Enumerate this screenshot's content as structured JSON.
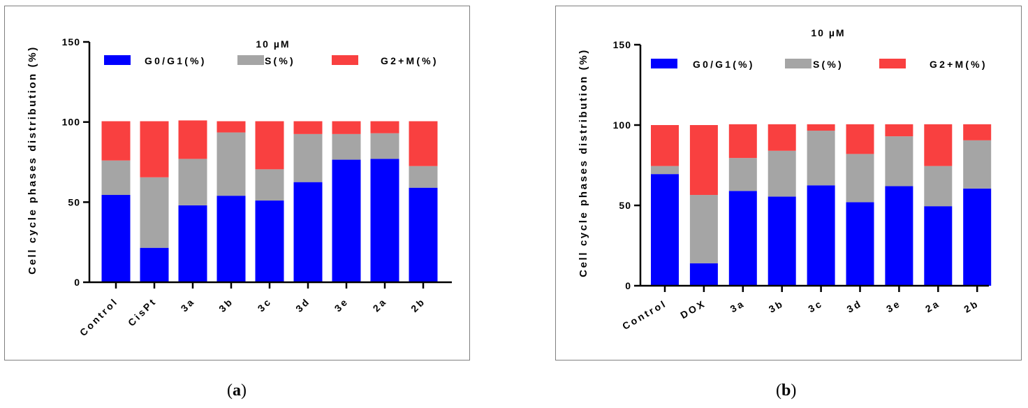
{
  "chart_data": [
    {
      "type": "bar",
      "stacked": true,
      "title": "10 µM",
      "xlabel": "",
      "ylabel": "Cell cycle phases distribution (%)",
      "ylim": [
        0,
        150
      ],
      "yticks": [
        0,
        50,
        100,
        150
      ],
      "categories": [
        "Control",
        "CisPt",
        "3a",
        "3b",
        "3c",
        "3d",
        "3e",
        "2a",
        "2b"
      ],
      "series": [
        {
          "name": "G0/G1(%)",
          "color": "#0000ff",
          "values": [
            54.5,
            21.5,
            48,
            54,
            51,
            62.5,
            76.5,
            77,
            59
          ]
        },
        {
          "name": "S(%)",
          "color": "#a5a5a5",
          "values": [
            21.5,
            44,
            29,
            39.5,
            19.5,
            30,
            16,
            16,
            13.5
          ]
        },
        {
          "name": "G2+M(%)",
          "color": "#f94040",
          "values": [
            24.5,
            35,
            24,
            7,
            30,
            8,
            8,
            7.5,
            28
          ]
        }
      ],
      "legend": "top"
    },
    {
      "type": "bar",
      "stacked": true,
      "title": "10 µM",
      "xlabel": "",
      "ylabel": "Cell cycle phases distribution (%)",
      "ylim": [
        0,
        150
      ],
      "yticks": [
        0,
        50,
        100,
        150
      ],
      "categories": [
        "Control",
        "DOX",
        "3a",
        "3b",
        "3c",
        "3d",
        "3e",
        "2a",
        "2b"
      ],
      "series": [
        {
          "name": "G0/G1(%)",
          "color": "#0000ff",
          "values": [
            69.5,
            14,
            59,
            55.5,
            62.5,
            52,
            62,
            49.5,
            60.5
          ]
        },
        {
          "name": "S(%)",
          "color": "#a5a5a5",
          "values": [
            5,
            42.5,
            20.5,
            28.5,
            34,
            30,
            31,
            25,
            30
          ]
        },
        {
          "name": "G2+M(%)",
          "color": "#f94040",
          "values": [
            25.5,
            43.5,
            21,
            16.5,
            4,
            18.5,
            7.5,
            26,
            10
          ]
        }
      ],
      "legend": "top"
    }
  ],
  "captions": [
    "a",
    "b"
  ]
}
